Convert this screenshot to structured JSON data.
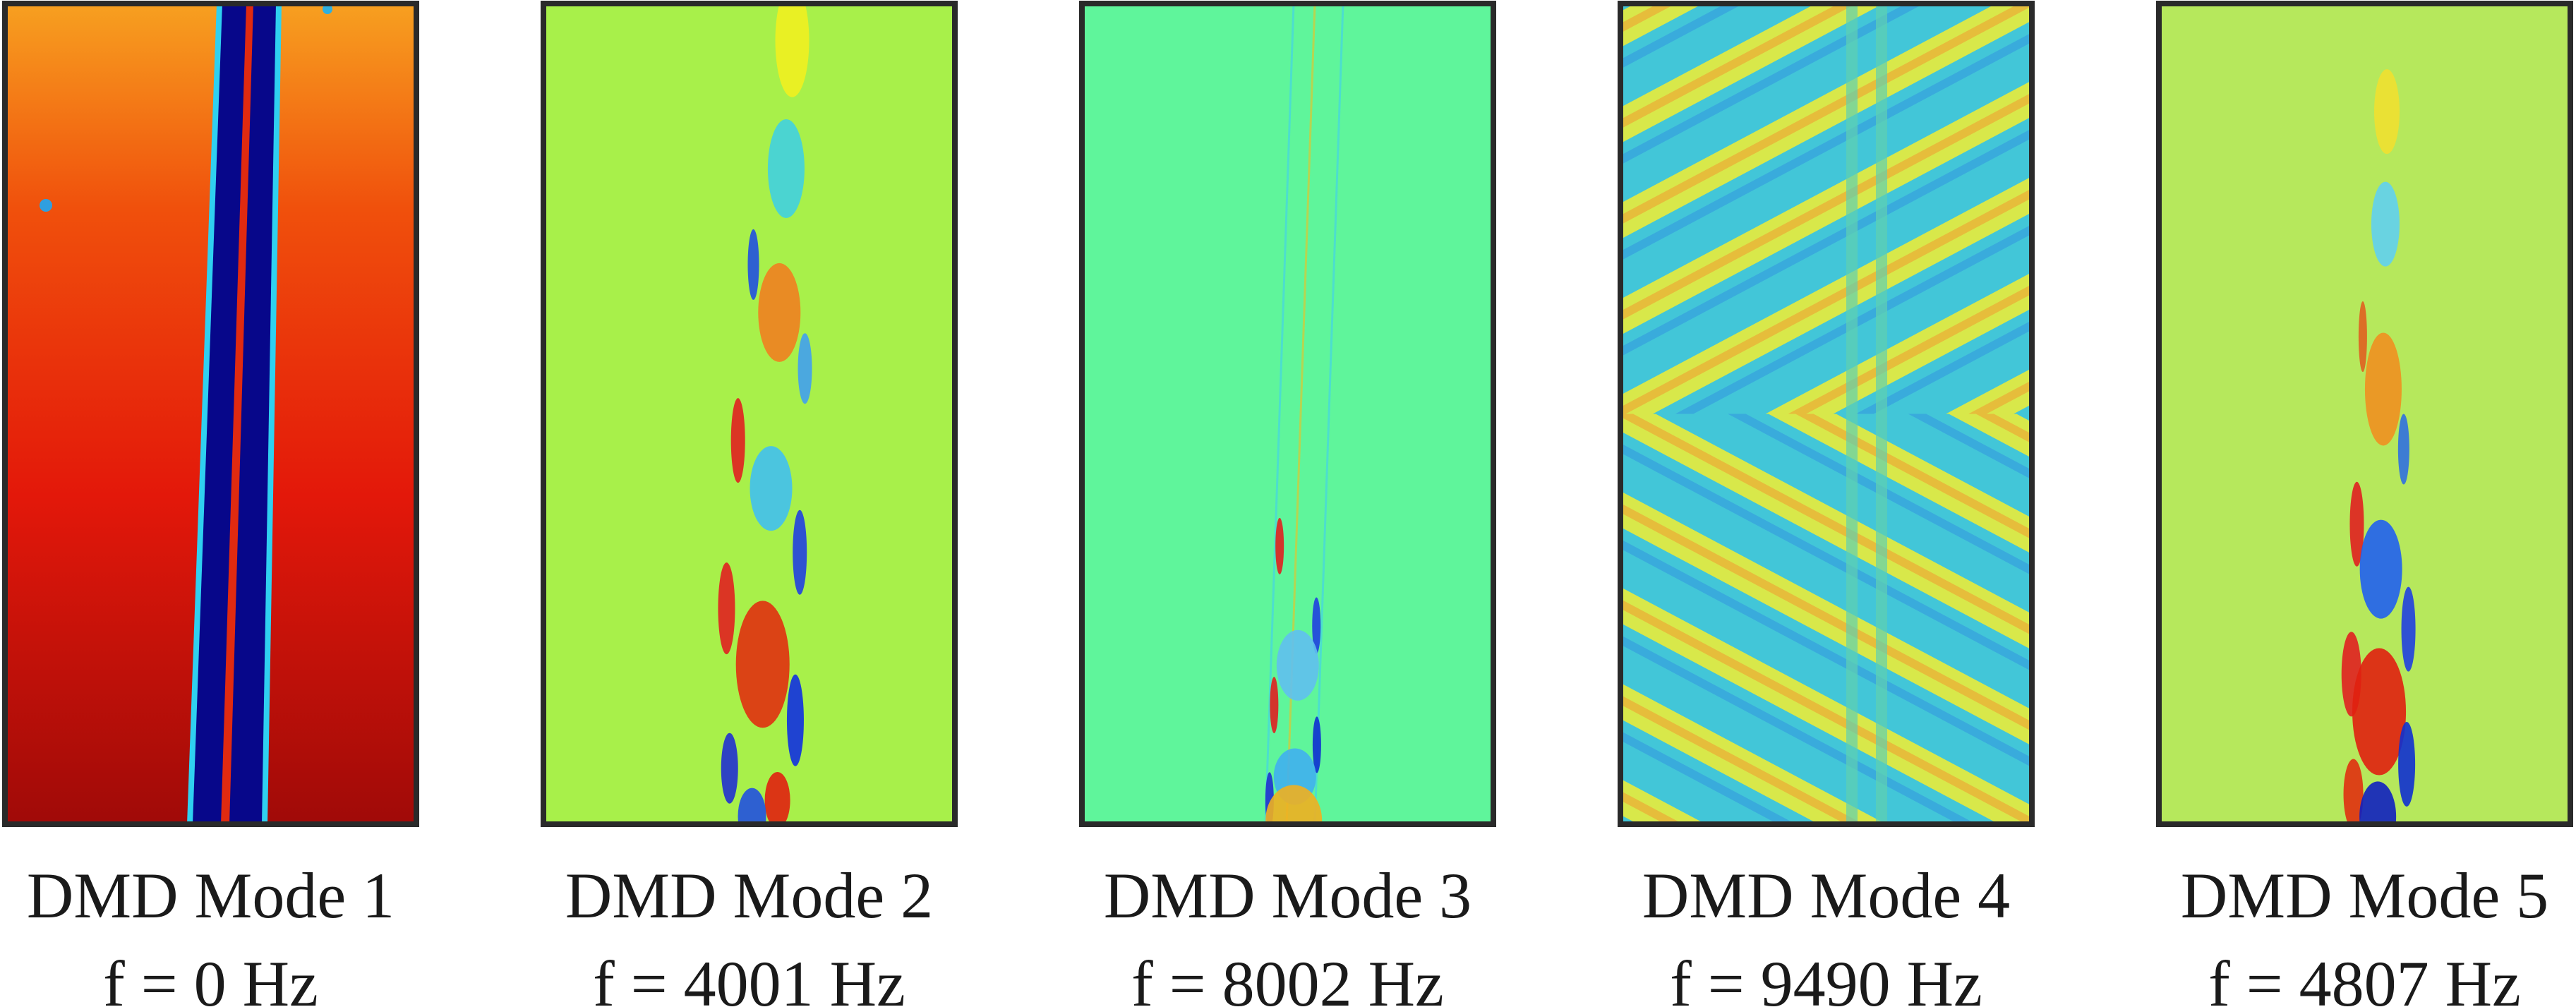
{
  "panels": [
    {
      "title": "DMD Mode 1",
      "frequency": "f = 0 Hz"
    },
    {
      "title": "DMD Mode 2",
      "frequency": "f = 4001 Hz"
    },
    {
      "title": "DMD Mode 3",
      "frequency": "f = 8002 Hz"
    },
    {
      "title": "DMD Mode 4",
      "frequency": "f = 9490 Hz"
    },
    {
      "title": "DMD Mode 5",
      "frequency": "f = 4807 Hz"
    }
  ]
}
